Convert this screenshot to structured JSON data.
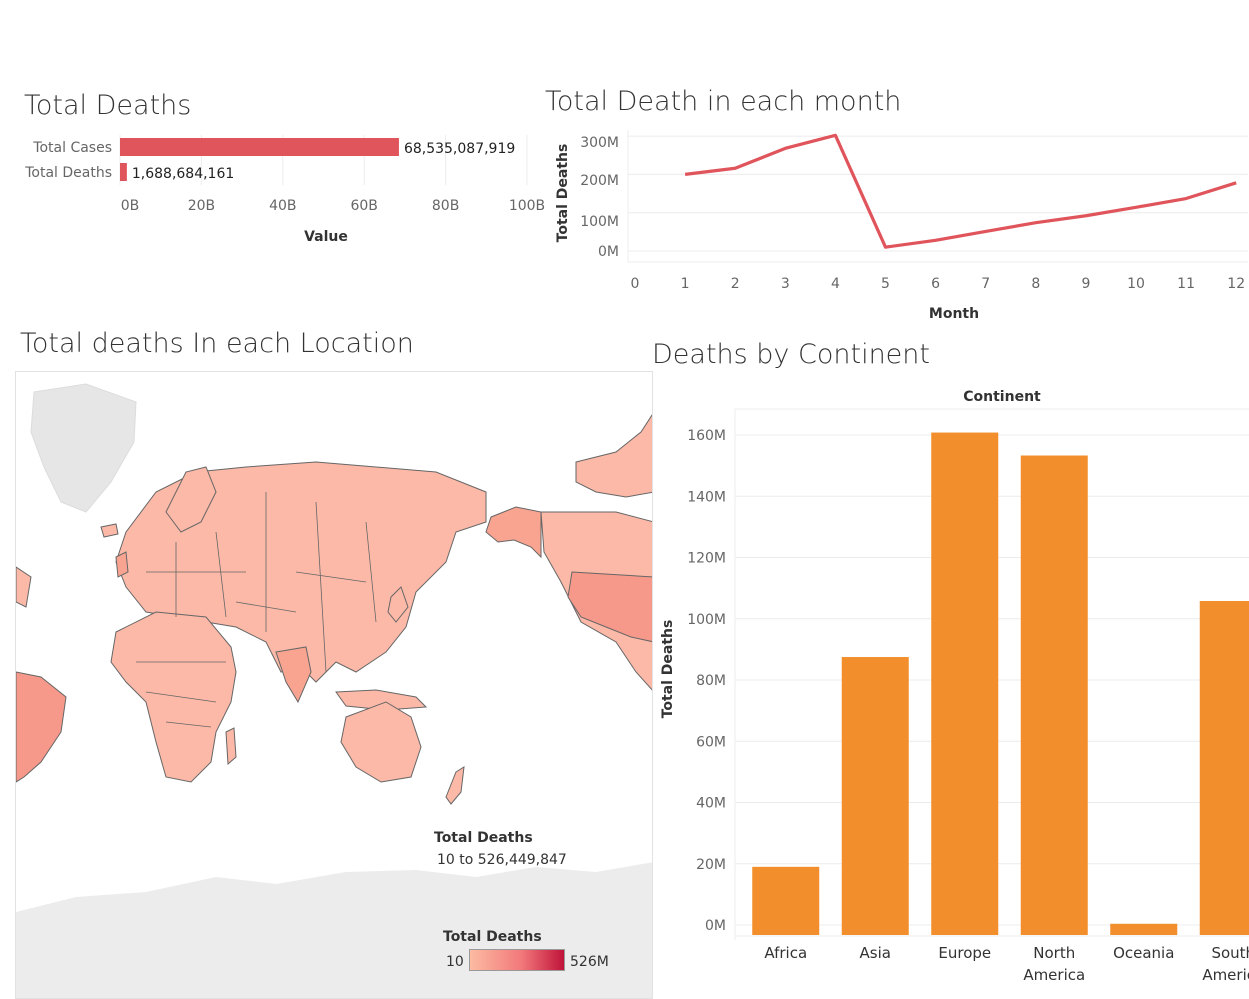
{
  "chart_data": [
    {
      "type": "bar",
      "orientation": "horizontal",
      "title": "Total Deaths",
      "categories": [
        "Total Cases",
        "Total Deaths"
      ],
      "values": [
        68535087919,
        1688684161
      ],
      "value_labels": [
        "68,535,087,919",
        "1,688,684,161"
      ],
      "xlabel": "Value",
      "xlim": [
        0,
        100000000000
      ],
      "xticks": [
        "0B",
        "20B",
        "40B",
        "60B",
        "80B",
        "100B"
      ],
      "color": "#e0545b"
    },
    {
      "type": "line",
      "title": "Total Death in each month",
      "x": [
        1,
        2,
        3,
        4,
        5,
        6,
        7,
        8,
        9,
        10,
        11,
        12
      ],
      "values": [
        200000000,
        216000000,
        268000000,
        302000000,
        10000000,
        28000000,
        51000000,
        74000000,
        92000000,
        114000000,
        137000000,
        178000000
      ],
      "xlabel": "Month",
      "ylabel": "Total Deaths",
      "xticks": [
        "0",
        "1",
        "2",
        "3",
        "4",
        "5",
        "6",
        "7",
        "8",
        "9",
        "10",
        "11",
        "12"
      ],
      "yticks": [
        "0M",
        "100M",
        "200M",
        "300M"
      ],
      "color": "#e0545b"
    },
    {
      "type": "bar",
      "title": "Deaths by Continent",
      "header": "Continent",
      "categories": [
        "Africa",
        "Asia",
        "Europe",
        "North America",
        "Oceania",
        "South America"
      ],
      "category_lines": [
        [
          "Africa"
        ],
        [
          "Asia"
        ],
        [
          "Europe"
        ],
        [
          "North",
          "America"
        ],
        [
          "Oceania"
        ],
        [
          "South",
          "America"
        ]
      ],
      "values": [
        19000000,
        87500000,
        160800000,
        153300000,
        400000,
        105800000
      ],
      "ylabel": "Total Deaths",
      "ylim": [
        0,
        170000000
      ],
      "yticks": [
        "0M",
        "20M",
        "40M",
        "60M",
        "80M",
        "100M",
        "120M",
        "140M",
        "160M"
      ],
      "color": "#f28e2b"
    }
  ],
  "map": {
    "title": "Total deaths In each Location",
    "tooltip_title": "Total Deaths",
    "tooltip_range": "10 to 526,449,847",
    "legend_title": "Total Deaths",
    "legend_min": "10",
    "legend_max": "526M",
    "colors": {
      "low": "#fcbba1",
      "mid": "#f2787a",
      "high": "#c0133a",
      "border": "#555555",
      "land_gray": "#e8e8e8"
    }
  }
}
